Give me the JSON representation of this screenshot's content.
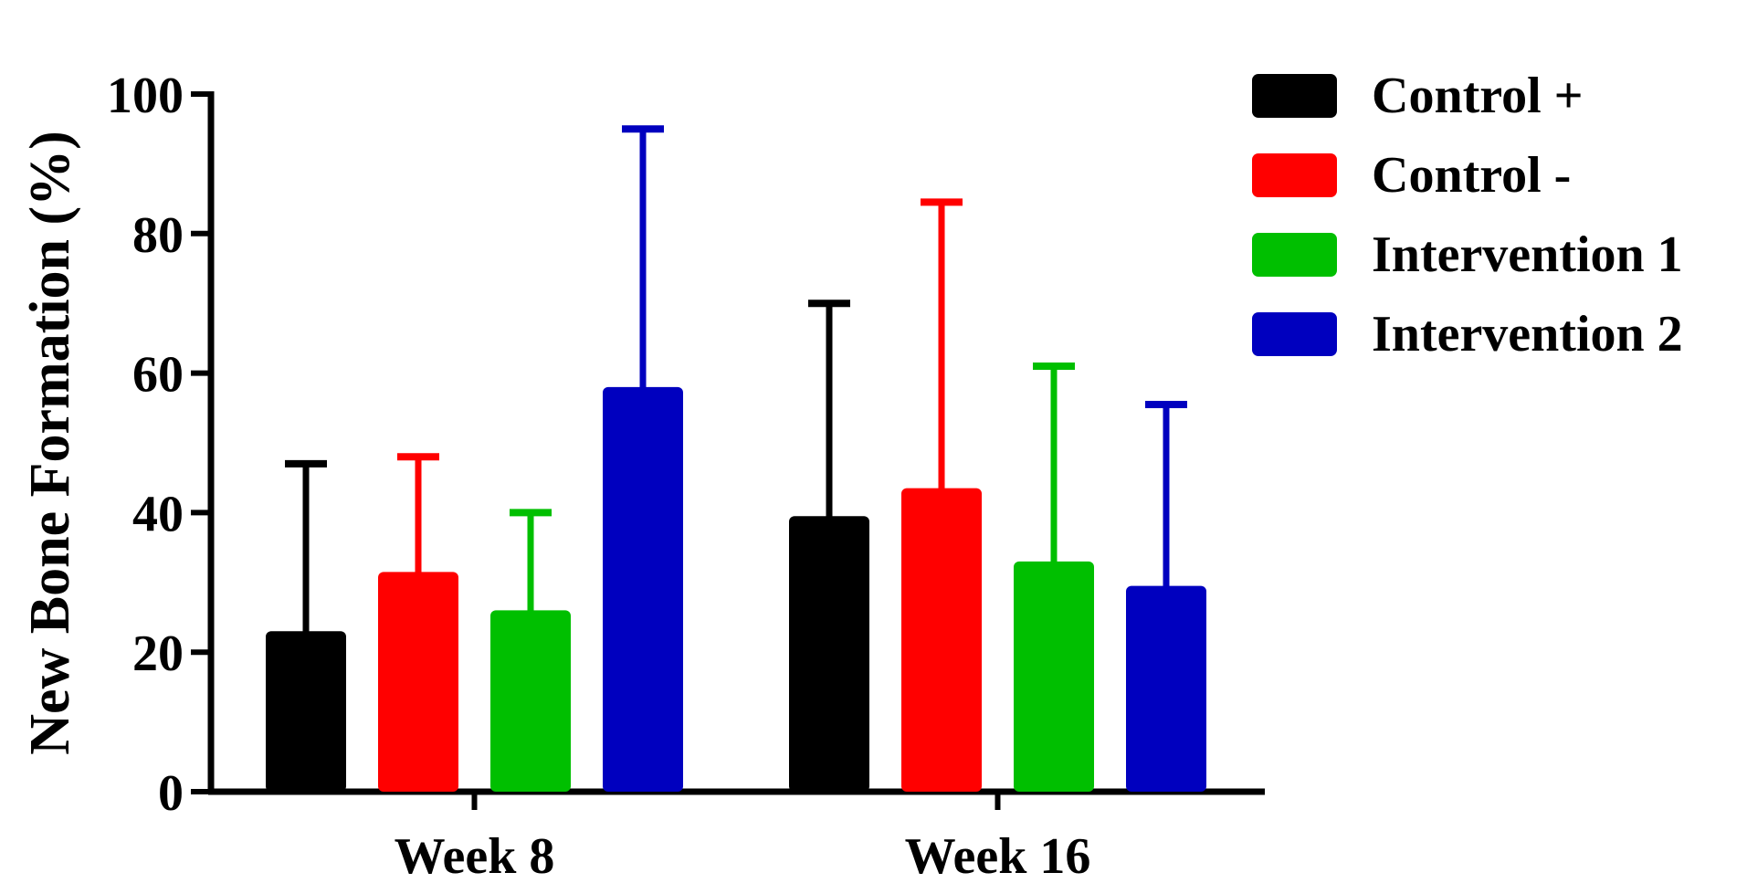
{
  "chart_data": {
    "type": "bar",
    "title": "",
    "xlabel": "",
    "ylabel": "New Bone Formation (%)",
    "ylim": [
      0,
      100
    ],
    "yticks": [
      0,
      20,
      40,
      60,
      80,
      100
    ],
    "grid": false,
    "error_bars": "upper",
    "legend_position": "right",
    "categories": [
      "Week 8",
      "Week 16"
    ],
    "series": [
      {
        "name": "Control +",
        "color": "#000000",
        "values": [
          23,
          39.5
        ],
        "error": [
          24,
          30.5
        ]
      },
      {
        "name": "Control -",
        "color": "#ff0000",
        "values": [
          31.5,
          43.5
        ],
        "error": [
          16.5,
          41
        ]
      },
      {
        "name": "Intervention 1",
        "color": "#00bf00",
        "values": [
          26,
          33
        ],
        "error": [
          14,
          28
        ]
      },
      {
        "name": "Intervention 2",
        "color": "#0000bf",
        "values": [
          58,
          29.5
        ],
        "error": [
          37,
          26
        ]
      }
    ]
  }
}
